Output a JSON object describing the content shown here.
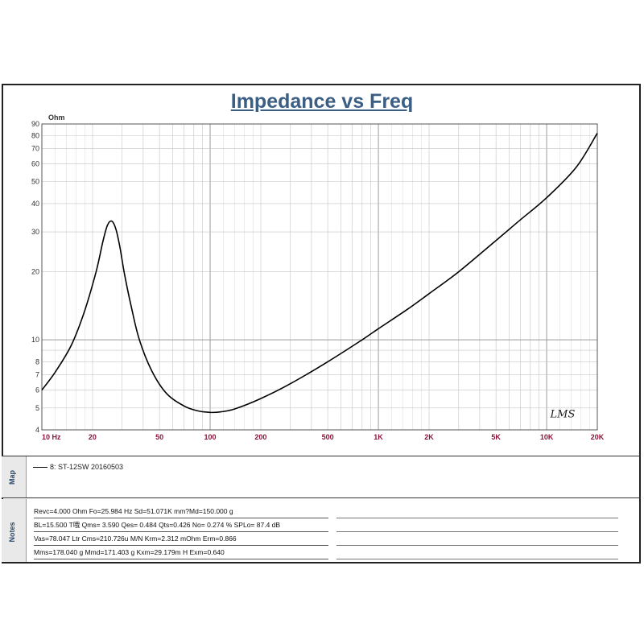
{
  "chart_data": {
    "type": "line",
    "title": "Impedance vs Freq",
    "ylabel": "Ohm",
    "xscale": "log",
    "yscale": "log",
    "xlim": [
      10,
      20000
    ],
    "ylim": [
      4,
      90
    ],
    "grid": true,
    "x_ticks": [
      {
        "v": 10,
        "label": "10 Hz"
      },
      {
        "v": 20,
        "label": "20"
      },
      {
        "v": 50,
        "label": "50"
      },
      {
        "v": 100,
        "label": "100"
      },
      {
        "v": 200,
        "label": "200"
      },
      {
        "v": 500,
        "label": "500"
      },
      {
        "v": 1000,
        "label": "1K"
      },
      {
        "v": 2000,
        "label": "2K"
      },
      {
        "v": 5000,
        "label": "5K"
      },
      {
        "v": 10000,
        "label": "10K"
      },
      {
        "v": 20000,
        "label": "20K"
      }
    ],
    "y_ticks": [
      {
        "v": 4,
        "label": "4"
      },
      {
        "v": 5,
        "label": "5"
      },
      {
        "v": 6,
        "label": "6"
      },
      {
        "v": 7,
        "label": "7"
      },
      {
        "v": 8,
        "label": "8"
      },
      {
        "v": 10,
        "label": "10"
      },
      {
        "v": 20,
        "label": "20"
      },
      {
        "v": 30,
        "label": "30"
      },
      {
        "v": 40,
        "label": "40"
      },
      {
        "v": 50,
        "label": "50"
      },
      {
        "v": 60,
        "label": "60"
      },
      {
        "v": 70,
        "label": "70"
      },
      {
        "v": 80,
        "label": "80"
      },
      {
        "v": 90,
        "label": "90"
      }
    ],
    "series": [
      {
        "name": "8: ST-12SW 20160503",
        "color": "#000000",
        "x": [
          10,
          12,
          15,
          18,
          21,
          23,
          24.5,
          25.98,
          27.5,
          29,
          31,
          34,
          38,
          45,
          55,
          70,
          85,
          100,
          115,
          140,
          200,
          300,
          500,
          800,
          1000,
          1500,
          2000,
          3000,
          5000,
          7000,
          10000,
          15000,
          20000
        ],
        "y": [
          6.0,
          7.2,
          9.5,
          13.5,
          20,
          27,
          32,
          33.5,
          31,
          26,
          19.5,
          14,
          10,
          7.3,
          5.8,
          5.1,
          4.85,
          4.78,
          4.8,
          4.95,
          5.5,
          6.4,
          8.0,
          10.0,
          11.2,
          13.7,
          16.0,
          20.0,
          27.5,
          34.0,
          42.5,
          58.0,
          82.0
        ]
      }
    ],
    "annotation": "LMS",
    "ylabel_color": "#333333",
    "xtick_color": "#8b1538"
  },
  "map": {
    "label": "Map",
    "legend": "8: ST-12SW 20160503"
  },
  "notes": {
    "label": "Notes",
    "rows": [
      "Revc=4.000 Ohm  Fo=25.984 Hz  Sd=51.071K mm?Md=150.000 g",
      "BL=15.500 T哦  Qms= 3.590  Qes= 0.484  Qts=0.426  No= 0.274 %  SPLo= 87.4 dB",
      "Vas=78.047 Ltr  Cms=210.726u M/N  Krm=2.312 mOhm  Erm=0.866",
      "Mms=178.040 g  Mmd=171.403 g  Kxm=29.179m H  Exm=0.640"
    ]
  }
}
